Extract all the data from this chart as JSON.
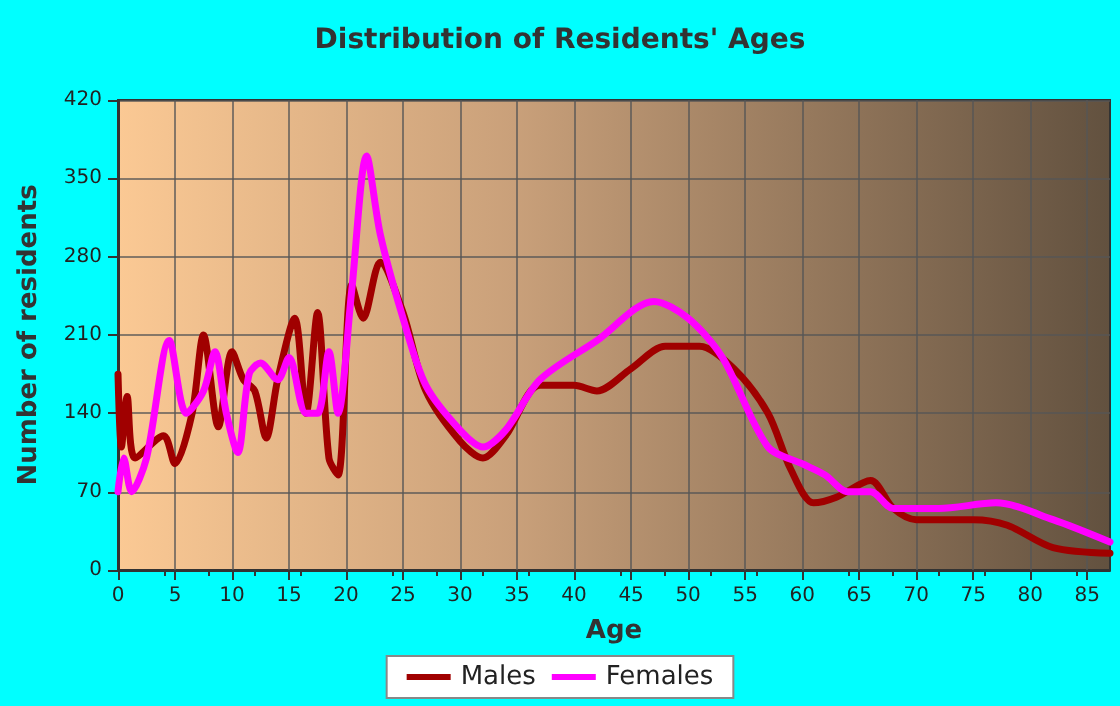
{
  "chart_data": {
    "type": "line",
    "title": "Distribution of Residents' Ages",
    "xlabel": "Age",
    "ylabel": "Number of residents",
    "xlim": [
      0,
      87
    ],
    "xticks": [
      0,
      5,
      10,
      15,
      20,
      25,
      30,
      35,
      40,
      45,
      50,
      55,
      60,
      65,
      70,
      75,
      80,
      85
    ],
    "ylim": [
      0,
      420
    ],
    "yticks": [
      0,
      70,
      140,
      210,
      280,
      350,
      420
    ],
    "grid": true,
    "legend": "bottom",
    "marker": "none",
    "line_style": "solid",
    "series": [
      {
        "name": "Males",
        "color": "#a00000",
        "x": [
          0,
          0.3,
          0.8,
          1.5,
          4,
          5,
          6.5,
          7.5,
          8.8,
          10,
          11,
          12,
          13,
          14,
          15.5,
          16.5,
          17.5,
          18.5,
          19.3,
          20.5,
          21.5,
          23,
          25,
          27,
          30,
          32,
          34,
          37,
          40,
          42,
          45,
          48,
          51,
          54,
          57,
          59,
          61,
          63,
          66,
          68,
          70,
          75,
          78,
          82,
          87
        ],
        "values": [
          175,
          110,
          155,
          100,
          120,
          95,
          140,
          210,
          128,
          195,
          170,
          160,
          118,
          170,
          225,
          140,
          230,
          100,
          85,
          255,
          225,
          275,
          230,
          160,
          115,
          100,
          120,
          165,
          165,
          160,
          180,
          200,
          200,
          180,
          140,
          90,
          60,
          65,
          80,
          55,
          45,
          45,
          40,
          20,
          15
        ]
      },
      {
        "name": "Females",
        "color": "#ff00ff",
        "x": [
          0,
          0.5,
          1.2,
          2.5,
          4.5,
          6,
          7.5,
          8.5,
          9.5,
          10.5,
          11.5,
          12.5,
          14,
          15,
          16.5,
          17.5,
          18.5,
          19.3,
          20.5,
          21.8,
          23,
          25,
          27,
          30,
          32,
          34,
          37,
          42,
          47,
          50,
          53,
          57,
          60,
          62,
          64,
          66,
          68,
          72,
          77,
          82,
          87
        ],
        "values": [
          70,
          100,
          70,
          100,
          205,
          140,
          160,
          195,
          140,
          105,
          175,
          185,
          170,
          190,
          140,
          140,
          195,
          140,
          250,
          370,
          300,
          225,
          165,
          125,
          110,
          125,
          170,
          205,
          240,
          225,
          190,
          110,
          95,
          85,
          70,
          70,
          55,
          55,
          60,
          45,
          25
        ]
      }
    ]
  }
}
